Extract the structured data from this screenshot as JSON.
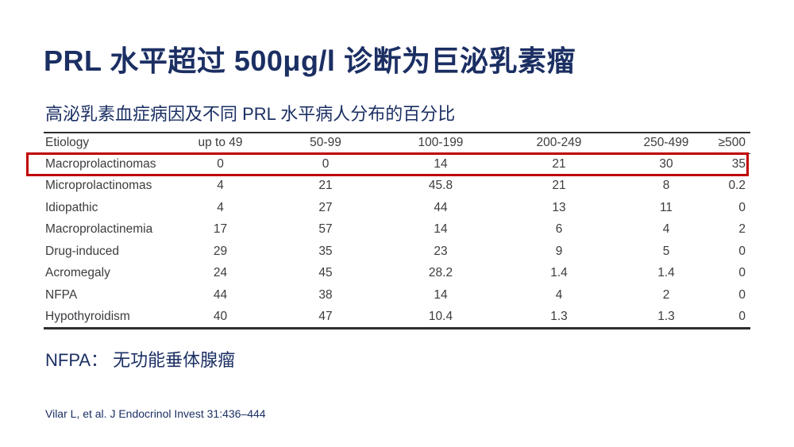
{
  "slide": {
    "title": "PRL 水平超过 500μg/l 诊断为巨泌乳素瘤",
    "table_caption": "高泌乳素血症病因及不同 PRL 水平病人分布的百分比",
    "note": "NFPA： 无功能垂体腺瘤",
    "citation": "Vilar L, et al. J Endocrinol Invest 31:436–444"
  },
  "colors": {
    "heading_navy": "#1b2f63",
    "table_text": "#3c3c40",
    "table_border": "#2e2e30",
    "highlight_red": "#c00000",
    "background": "#ffffff"
  },
  "chart_data": {
    "type": "table",
    "title": "高泌乳素血症病因及不同 PRL 水平病人分布的百分比",
    "columns": [
      "Etiology",
      "up to 49",
      "50-99",
      "100-199",
      "200-249",
      "250-499",
      "≥500"
    ],
    "rows": [
      {
        "label": "Macroprolactinomas",
        "values": [
          "0",
          "0",
          "14",
          "21",
          "30",
          "35"
        ],
        "highlighted": true
      },
      {
        "label": "Microprolactinomas",
        "values": [
          "4",
          "21",
          "45.8",
          "21",
          "8",
          "0.2"
        ],
        "highlighted": false
      },
      {
        "label": "Idiopathic",
        "values": [
          "4",
          "27",
          "44",
          "13",
          "11",
          "0"
        ],
        "highlighted": false
      },
      {
        "label": "Macroprolactinemia",
        "values": [
          "17",
          "57",
          "14",
          "6",
          "4",
          "2"
        ],
        "highlighted": false
      },
      {
        "label": "Drug-induced",
        "values": [
          "29",
          "35",
          "23",
          "9",
          "5",
          "0"
        ],
        "highlighted": false
      },
      {
        "label": "Acromegaly",
        "values": [
          "24",
          "45",
          "28.2",
          "1.4",
          "1.4",
          "0"
        ],
        "highlighted": false
      },
      {
        "label": "NFPA",
        "values": [
          "44",
          "38",
          "14",
          "4",
          "2",
          "0"
        ],
        "highlighted": false
      },
      {
        "label": "Hypothyroidism",
        "values": [
          "40",
          "47",
          "10.4",
          "1.3",
          "1.3",
          "0"
        ],
        "highlighted": false
      }
    ],
    "highlighted_row": "Macroprolactinomas",
    "legend_position": "none",
    "grid": false
  }
}
